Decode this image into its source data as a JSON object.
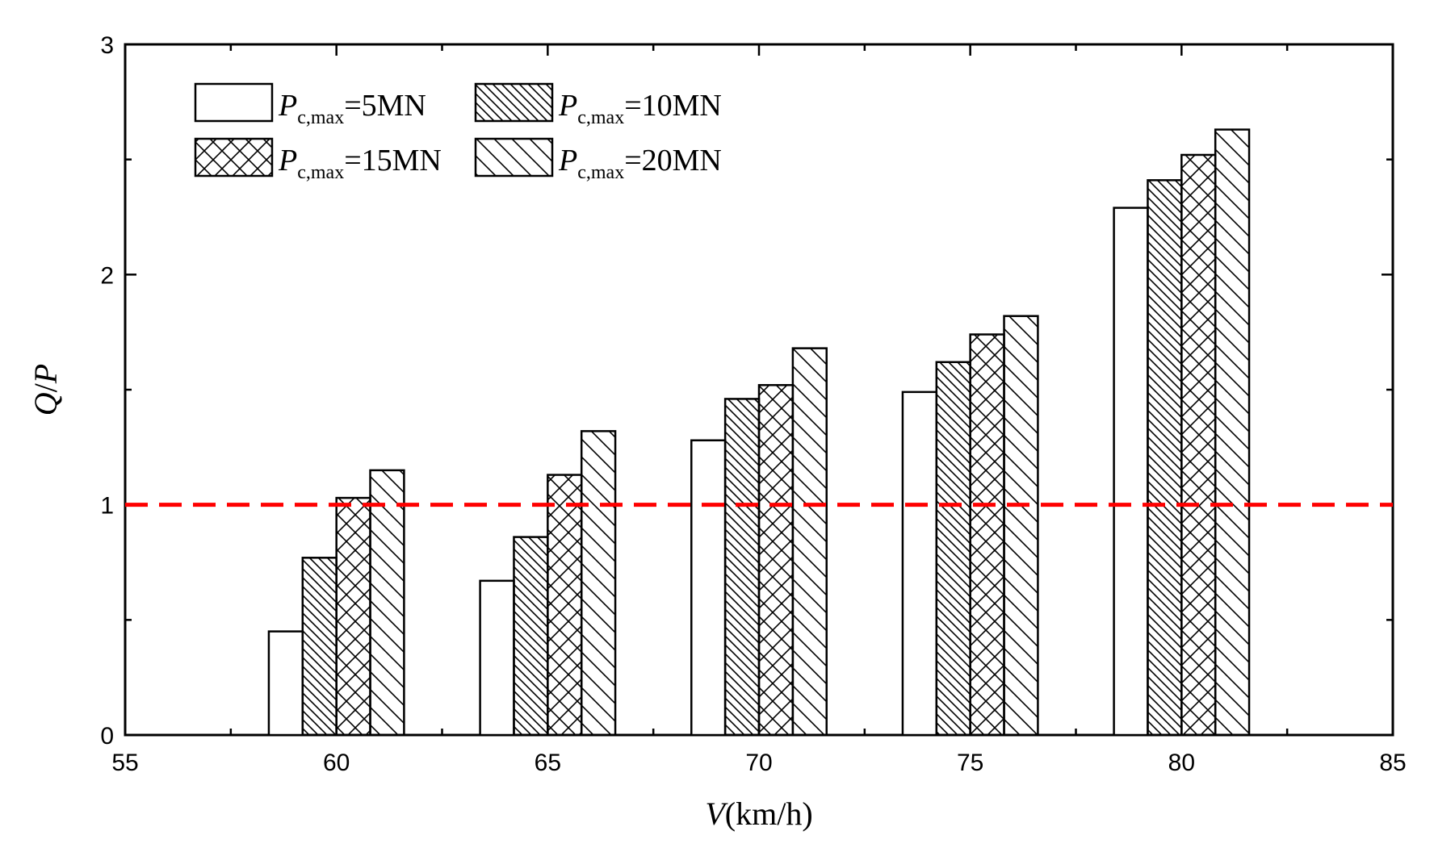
{
  "chart_data": {
    "type": "bar",
    "xlabel_var": "V",
    "xlabel_unit": "(km/h)",
    "ylabel_num": "Q",
    "ylabel_sep": "/",
    "ylabel_den": "P",
    "xlim": [
      55,
      85
    ],
    "ylim": [
      0,
      3
    ],
    "xticks": [
      "55",
      "60",
      "65",
      "70",
      "75",
      "80",
      "85"
    ],
    "yticks": [
      "0",
      "1",
      "2",
      "3"
    ],
    "reference_line": {
      "y": 1,
      "color": "#ff0000",
      "style": "dashed"
    },
    "categories": [
      60,
      65,
      70,
      75,
      80
    ],
    "series": [
      {
        "name_var": "P",
        "name_sub": "c,max",
        "name_rest": "=5MN",
        "pattern": "none",
        "values": [
          0.45,
          0.67,
          1.28,
          1.49,
          2.29
        ]
      },
      {
        "name_var": "P",
        "name_sub": "c,max",
        "name_rest": "=10MN",
        "pattern": "dense-diagonal",
        "values": [
          0.77,
          0.86,
          1.46,
          1.62,
          2.41
        ]
      },
      {
        "name_var": "P",
        "name_sub": "c,max",
        "name_rest": "=15MN",
        "pattern": "crosshatch",
        "values": [
          1.03,
          1.13,
          1.52,
          1.74,
          2.52
        ]
      },
      {
        "name_var": "P",
        "name_sub": "c,max",
        "name_rest": "=20MN",
        "pattern": "sparse-diagonal",
        "values": [
          1.15,
          1.32,
          1.68,
          1.82,
          2.63
        ]
      }
    ],
    "legend_placement": "top-left"
  }
}
